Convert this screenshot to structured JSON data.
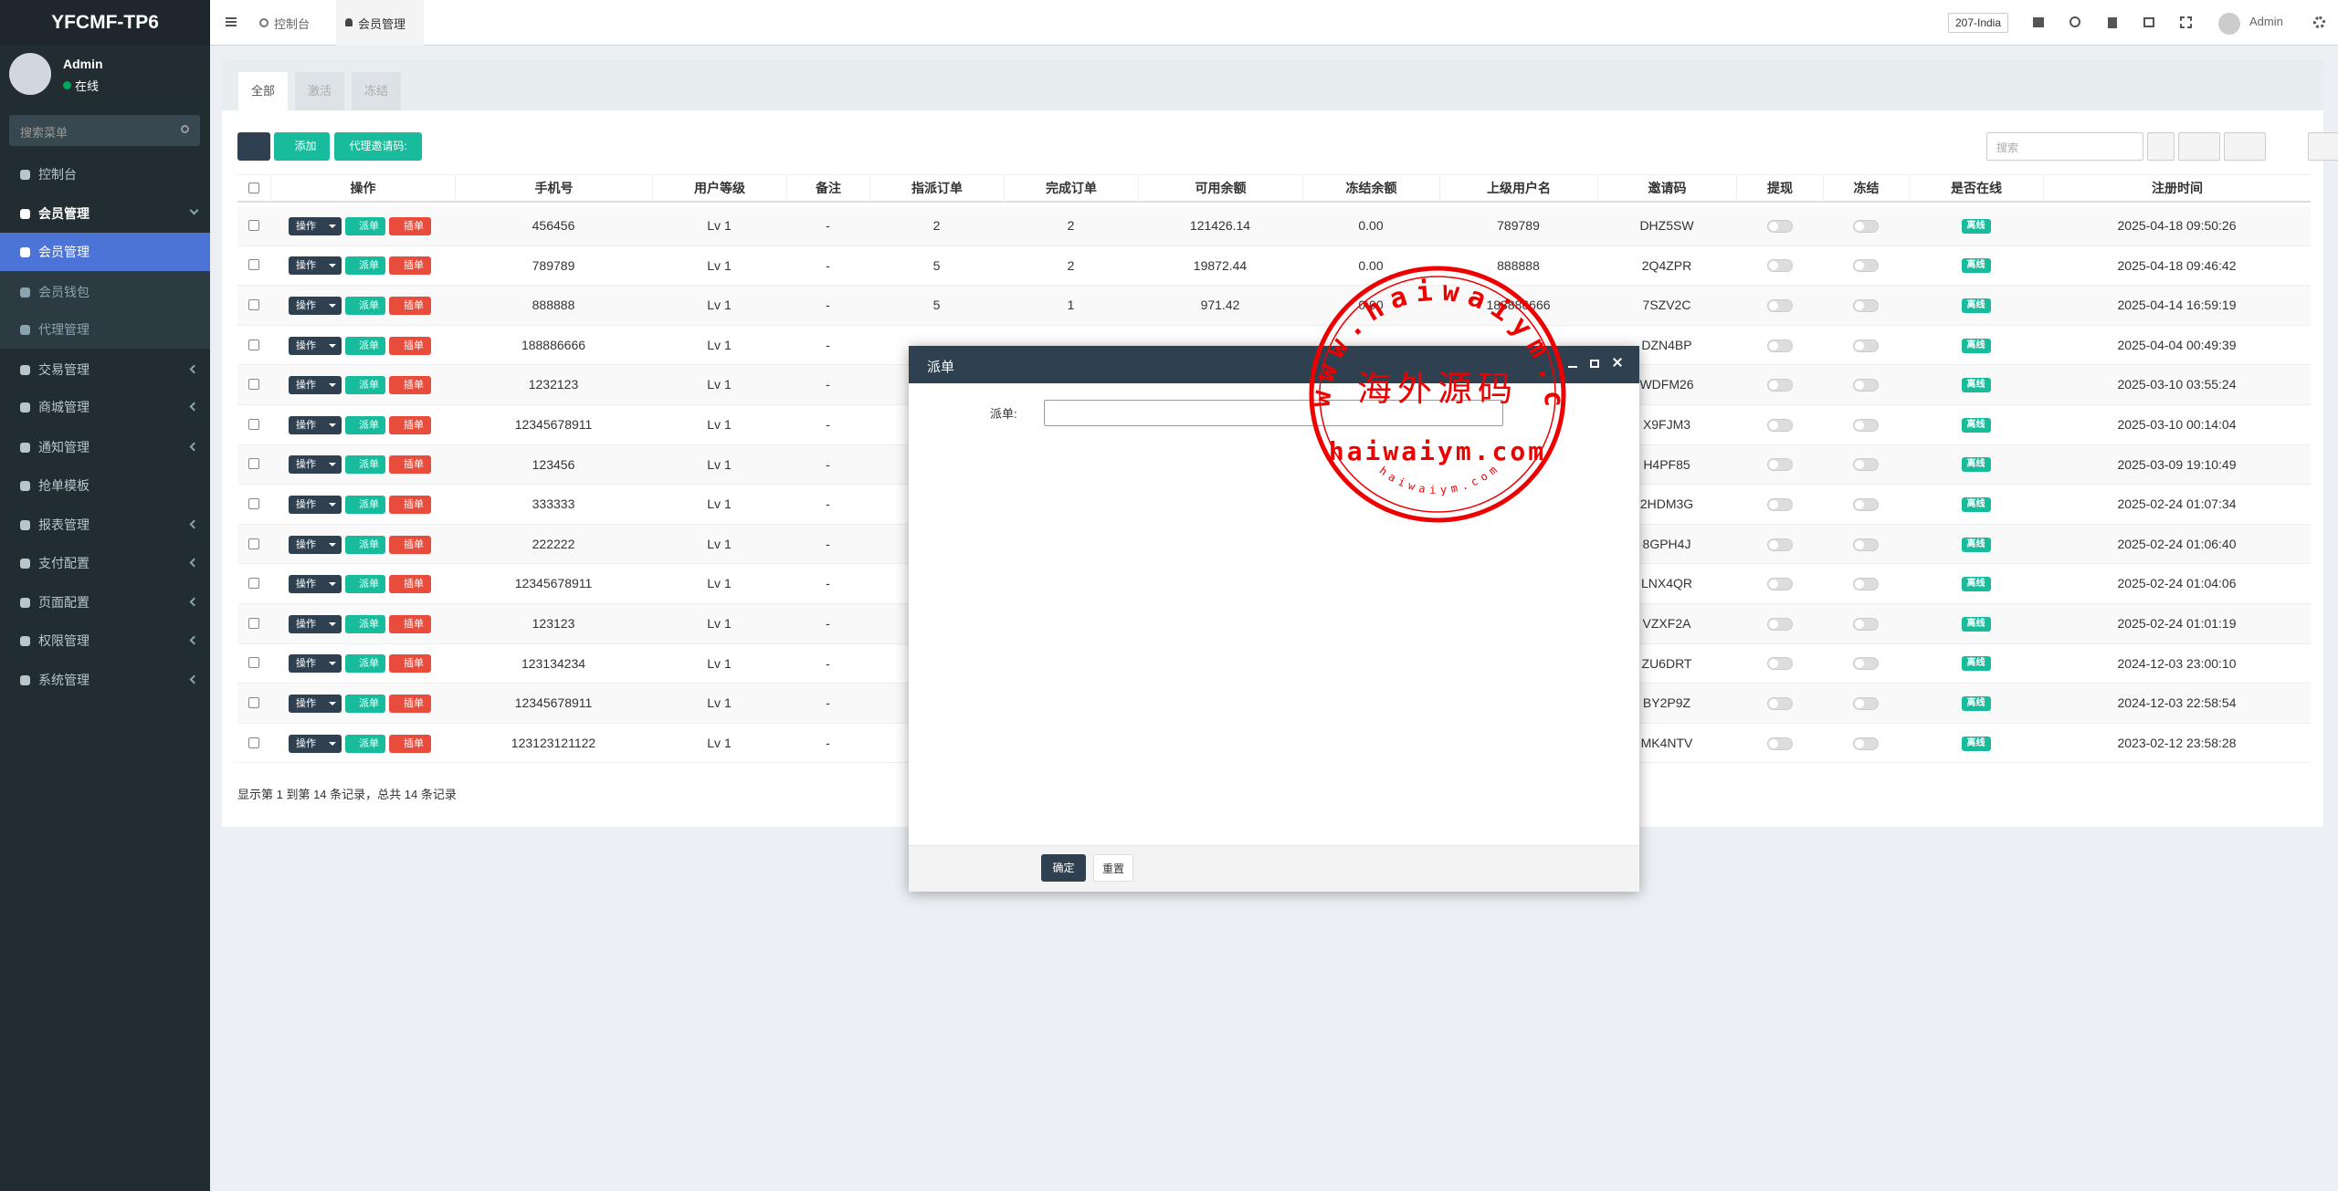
{
  "sidebar": {
    "logo": "YFCMF-TP6",
    "user": {
      "name": "Admin",
      "status": "在线"
    },
    "search_placeholder": "搜索菜单",
    "menu": [
      {
        "label": "控制台"
      },
      {
        "label": "会员管理"
      },
      {
        "label": "会员管理"
      },
      {
        "label": "会员钱包"
      },
      {
        "label": "代理管理"
      },
      {
        "label": "交易管理"
      },
      {
        "label": "商城管理"
      },
      {
        "label": "通知管理"
      },
      {
        "label": "抢单模板"
      },
      {
        "label": "报表管理"
      },
      {
        "label": "支付配置"
      },
      {
        "label": "页面配置"
      },
      {
        "label": "权限管理"
      },
      {
        "label": "系统管理"
      }
    ]
  },
  "header": {
    "tabs": [
      "控制台",
      "会员管理"
    ],
    "lang": "207-India",
    "user": "Admin"
  },
  "page": {
    "tabs": [
      "全部",
      "激活",
      "冻结"
    ],
    "buttons": {
      "add": "添加",
      "invite": "代理邀请码:"
    },
    "search_placeholder": "搜索",
    "row_buttons": {
      "action": "操作",
      "assign": "派单",
      "insert": "插单"
    },
    "offline": "离线",
    "columns": [
      "操作",
      "手机号",
      "用户等级",
      "备注",
      "指派订单",
      "完成订单",
      "可用余额",
      "冻结余额",
      "上级用户名",
      "邀请码",
      "提现",
      "冻结",
      "是否在线",
      "注册时间"
    ],
    "rows": [
      [
        "456456",
        "Lv 1",
        "-",
        "2",
        "2",
        "121426.14",
        "0.00",
        "789789",
        "DHZ5SW",
        "2025-04-18 09:50:26"
      ],
      [
        "789789",
        "Lv 1",
        "-",
        "5",
        "2",
        "19872.44",
        "0.00",
        "888888",
        "2Q4ZPR",
        "2025-04-18 09:46:42"
      ],
      [
        "888888",
        "Lv 1",
        "-",
        "5",
        "1",
        "971.42",
        "0.00",
        "188886666",
        "7SZV2C",
        "2025-04-14 16:59:19"
      ],
      [
        "188886666",
        "Lv 1",
        "-",
        null,
        null,
        null,
        null,
        null,
        "DZN4BP",
        "2025-04-04 00:49:39"
      ],
      [
        "1232123",
        "Lv 1",
        "-",
        null,
        null,
        null,
        null,
        null,
        "WDFM26",
        "2025-03-10 03:55:24"
      ],
      [
        "12345678911",
        "Lv 1",
        "-",
        null,
        null,
        null,
        null,
        null,
        "X9FJM3",
        "2025-03-10 00:14:04"
      ],
      [
        "123456",
        "Lv 1",
        "-",
        null,
        null,
        null,
        null,
        null,
        "H4PF85",
        "2025-03-09 19:10:49"
      ],
      [
        "333333",
        "Lv 1",
        "-",
        null,
        null,
        null,
        null,
        null,
        "2HDM3G",
        "2025-02-24 01:07:34"
      ],
      [
        "222222",
        "Lv 1",
        "-",
        null,
        null,
        null,
        null,
        null,
        "8GPH4J",
        "2025-02-24 01:06:40"
      ],
      [
        "12345678911",
        "Lv 1",
        "-",
        null,
        null,
        null,
        null,
        null,
        "LNX4QR",
        "2025-02-24 01:04:06"
      ],
      [
        "123123",
        "Lv 1",
        "-",
        null,
        null,
        null,
        null,
        null,
        "VZXF2A",
        "2025-02-24 01:01:19"
      ],
      [
        "123134234",
        "Lv 1",
        "-",
        null,
        null,
        null,
        null,
        null,
        "ZU6DRT",
        "2024-12-03 23:00:10"
      ],
      [
        "12345678911",
        "Lv 1",
        "-",
        null,
        null,
        null,
        null,
        null,
        "BY2P9Z",
        "2024-12-03 22:58:54"
      ],
      [
        "123123121122",
        "Lv 1",
        "-",
        null,
        null,
        null,
        null,
        null,
        "MK4NTV",
        "2023-02-12 23:58:28"
      ]
    ],
    "footer": "显示第 1 到第 14 条记录，总共 14 条记录"
  },
  "modal": {
    "title": "派单",
    "field_label": "派单:",
    "ok": "确定",
    "reset": "重置"
  },
  "watermark": {
    "ring": "www.haiwaiym.com",
    "center": "海外源码",
    "domain": "haiwaiym.com",
    "small": "haiwaiym.com"
  }
}
